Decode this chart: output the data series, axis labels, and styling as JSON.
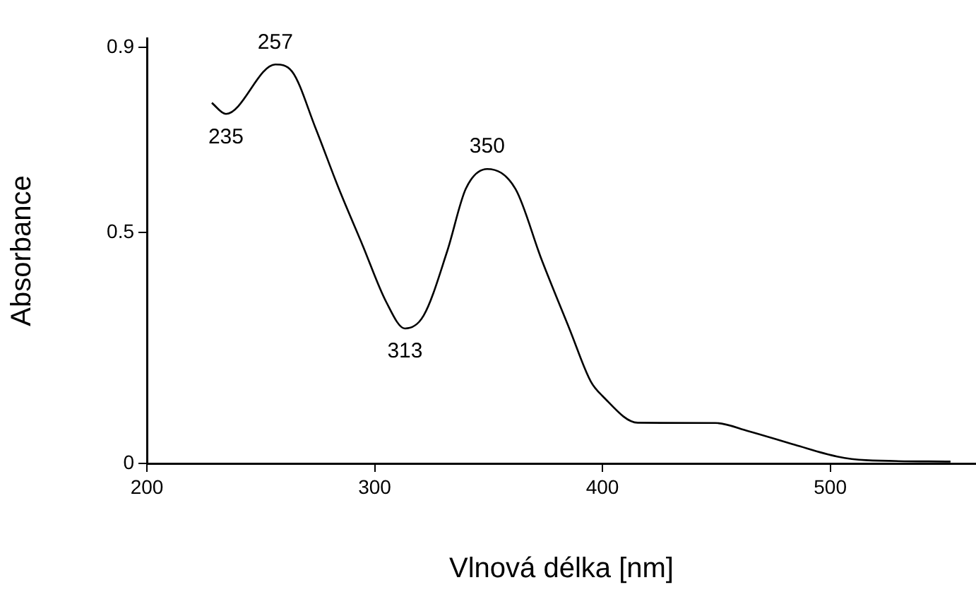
{
  "chart_data": {
    "type": "line",
    "xlabel": "Vlnová délka [nm]",
    "ylabel": "Absorbance",
    "x": [
      228.5,
      234.7,
      256.4,
      263.7,
      274,
      284.3,
      294.7,
      305,
      313.3,
      321.5,
      331.9,
      340,
      349.4,
      361.8,
      373.2,
      385.6,
      394.9,
      400,
      415.5,
      449.6,
      464,
      484.6,
      503,
      515.6,
      552.8
    ],
    "series": [
      {
        "color": "#000000",
        "values": [
          0.78,
          0.756,
          0.863,
          0.848,
          0.726,
          0.594,
          0.472,
          0.35,
          0.292,
          0.32,
          0.46,
          0.594,
          0.637,
          0.594,
          0.442,
          0.29,
          0.177,
          0.146,
          0.088,
          0.0875,
          0.07,
          0.04,
          0.015,
          0.007,
          0.004
        ]
      }
    ],
    "xlim": [
      200,
      564
    ],
    "xticks": [
      200,
      300,
      400,
      500
    ],
    "ylim": [
      0,
      0.92
    ],
    "yticks": [
      0,
      0.5,
      0.9
    ],
    "grid": false,
    "legend": false,
    "marker": "none",
    "line_style": "solid",
    "annotations": [
      {
        "text": "235",
        "x": 234.7,
        "y": 0.756
      },
      {
        "text": "257",
        "x": 256.4,
        "y": 0.863
      },
      {
        "text": "313",
        "x": 313.3,
        "y": 0.292
      },
      {
        "text": "350",
        "x": 349.4,
        "y": 0.637
      }
    ]
  }
}
